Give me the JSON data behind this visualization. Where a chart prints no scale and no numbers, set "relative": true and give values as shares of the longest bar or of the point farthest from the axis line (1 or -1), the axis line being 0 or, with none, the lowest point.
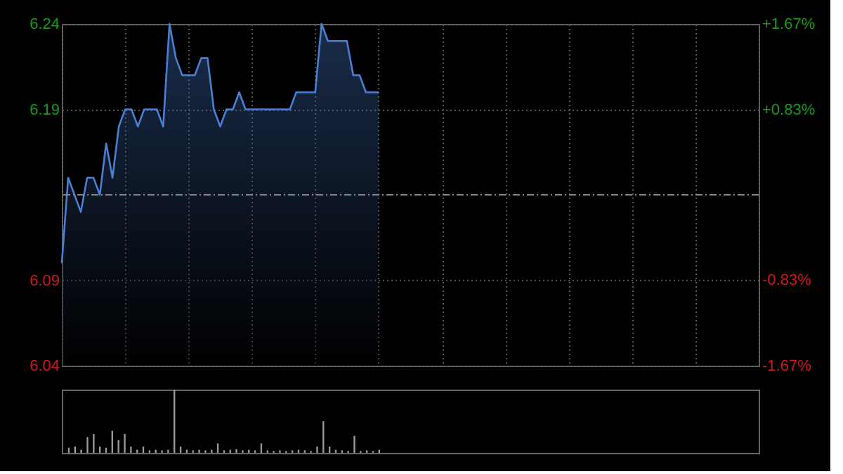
{
  "chart_data": [
    {
      "type": "area",
      "categories": [
        null,
        null,
        null,
        null,
        null,
        null,
        null,
        null,
        null,
        null,
        null,
        null,
        null,
        null,
        null,
        null,
        null,
        null,
        null,
        null,
        null,
        null,
        null,
        null,
        null,
        null,
        null,
        null,
        null,
        null,
        null,
        null,
        null,
        null,
        null,
        null,
        null,
        null,
        null,
        null,
        null,
        null,
        null,
        null,
        null,
        null,
        null,
        null,
        null,
        null,
        null,
        null,
        null,
        null,
        null,
        null,
        null,
        null,
        null,
        null,
        null,
        null,
        null,
        null,
        null,
        null,
        null,
        null,
        null,
        null,
        null,
        null,
        null,
        null,
        null,
        null,
        null,
        null,
        null,
        null,
        null,
        null,
        null,
        null,
        null,
        null,
        null,
        null,
        null,
        null,
        null,
        null,
        null,
        null,
        null,
        null,
        null,
        null,
        null,
        null,
        null,
        null,
        null,
        null,
        null,
        null,
        null,
        null,
        null,
        null,
        null
      ],
      "series": [
        {
          "color": "#4a7fd4",
          "values": [
            6.1,
            6.15,
            6.14,
            6.13,
            6.15,
            6.15,
            6.14,
            6.17,
            6.15,
            6.18,
            6.19,
            6.19,
            6.18,
            6.19,
            6.19,
            6.19,
            6.18,
            6.24,
            6.22,
            6.21,
            6.21,
            6.21,
            6.22,
            6.22,
            6.19,
            6.18,
            6.19,
            6.19,
            6.2,
            6.19,
            6.19,
            6.19,
            6.19,
            6.19,
            6.19,
            6.19,
            6.19,
            6.2,
            6.2,
            6.2,
            6.2,
            6.24,
            6.23,
            6.23,
            6.23,
            6.23,
            6.21,
            6.21,
            6.2,
            6.2,
            6.2,
            null,
            null,
            null,
            null,
            null,
            null,
            null,
            null,
            null,
            null,
            null,
            null,
            null,
            null,
            null,
            null,
            null,
            null,
            null,
            null,
            null,
            null,
            null,
            null,
            null,
            null,
            null,
            null,
            null,
            null,
            null,
            null,
            null,
            null,
            null,
            null,
            null,
            null,
            null,
            null,
            null,
            null,
            null,
            null,
            null,
            null,
            null,
            null,
            null,
            null,
            null,
            null,
            null,
            null,
            null,
            null,
            null,
            null,
            null,
            null
          ]
        }
      ],
      "ylim": [
        6.04,
        6.24
      ],
      "yticks": [
        6.04,
        6.09,
        6.19,
        6.24
      ],
      "y2lim": [
        -1.67,
        1.67
      ],
      "y2ticks": [
        {
          "value": -1.67,
          "label": "-1.67%"
        },
        {
          "value": -0.83,
          "label": "-0.83%"
        },
        {
          "value": 0.83,
          "label": "+0.83%"
        },
        {
          "value": 1.67,
          "label": "+1.67%"
        }
      ],
      "ref_lines": [
        {
          "axis": "y",
          "value": 6.14,
          "line_style": "dashed",
          "color": "#888888"
        }
      ],
      "grid": true,
      "legend": false,
      "marker": "none",
      "line_style": "solid",
      "tick_labels": "y"
    },
    {
      "type": "bar",
      "relative": true,
      "categories": [
        null,
        null,
        null,
        null,
        null,
        null,
        null,
        null,
        null,
        null,
        null,
        null,
        null,
        null,
        null,
        null,
        null,
        null,
        null,
        null,
        null,
        null,
        null,
        null,
        null,
        null,
        null,
        null,
        null,
        null,
        null,
        null,
        null,
        null,
        null,
        null,
        null,
        null,
        null,
        null,
        null,
        null,
        null,
        null,
        null,
        null,
        null,
        null,
        null,
        null,
        null,
        null,
        null,
        null,
        null,
        null,
        null,
        null,
        null,
        null,
        null,
        null,
        null,
        null,
        null,
        null,
        null,
        null,
        null,
        null,
        null,
        null,
        null,
        null,
        null,
        null,
        null,
        null,
        null,
        null,
        null,
        null,
        null,
        null,
        null,
        null,
        null,
        null,
        null,
        null,
        null,
        null,
        null,
        null,
        null,
        null,
        null,
        null,
        null,
        null,
        null,
        null,
        null,
        null,
        null,
        null,
        null,
        null,
        null,
        null,
        null
      ],
      "series": [
        {
          "color": "#999999",
          "values": [
            0.08,
            0.1,
            0.05,
            0.25,
            0.3,
            0.1,
            0.08,
            0.35,
            0.2,
            0.3,
            0.1,
            0.05,
            0.1,
            0.04,
            0.05,
            0.04,
            0.05,
            1,
            0.1,
            0.05,
            0.04,
            0.05,
            0.04,
            0.05,
            0.15,
            0.04,
            0.05,
            0.06,
            0.04,
            0.05,
            0.04,
            0.15,
            0.04,
            0.03,
            0.04,
            0.03,
            0.04,
            0.05,
            0.04,
            0.03,
            0.1,
            0.5,
            0.1,
            0.05,
            0.04,
            0.03,
            0.27,
            0.03,
            0.04,
            0.03,
            0.05,
            null,
            null,
            null,
            null,
            null,
            null,
            null,
            null,
            null,
            null,
            null,
            null,
            null,
            null,
            null,
            null,
            null,
            null,
            null,
            null,
            null,
            null,
            null,
            null,
            null,
            null,
            null,
            null,
            null,
            null,
            null,
            null,
            null,
            null,
            null,
            null,
            null,
            null,
            null,
            null,
            null,
            null,
            null,
            null,
            null,
            null,
            null,
            null,
            null,
            null,
            null,
            null,
            null,
            null,
            null,
            null,
            null,
            null,
            null,
            null
          ]
        }
      ],
      "grid": false,
      "tick_labels": false
    }
  ]
}
